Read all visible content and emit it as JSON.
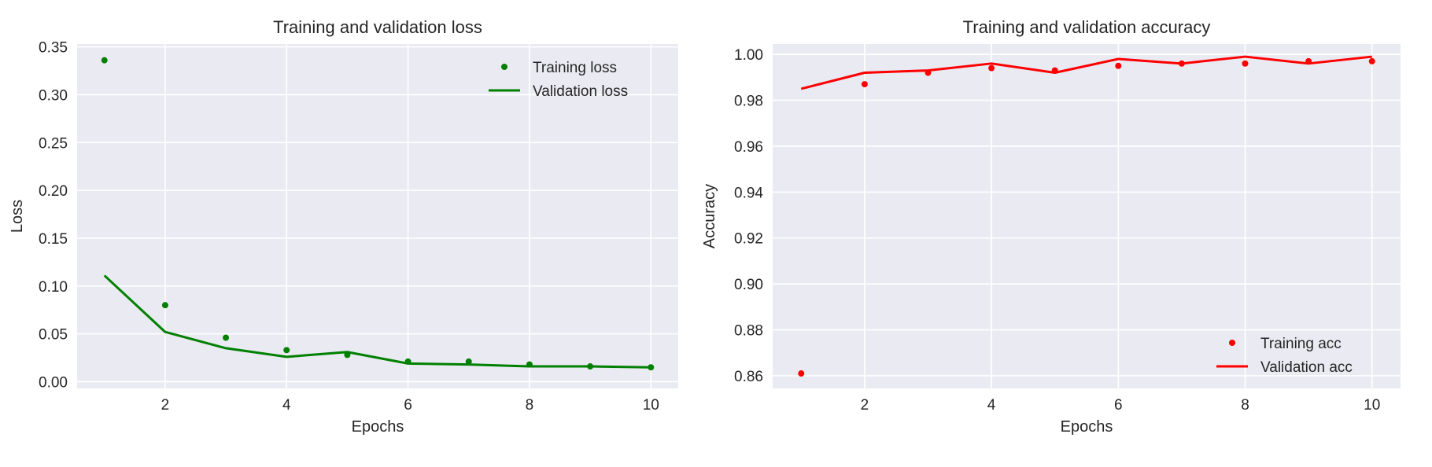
{
  "chart_data": [
    {
      "type": "line",
      "title": "Training and validation loss",
      "xlabel": "Epochs",
      "ylabel": "Loss",
      "x": [
        1,
        2,
        3,
        4,
        5,
        6,
        7,
        8,
        9,
        10
      ],
      "xlim": [
        0.55,
        10.45
      ],
      "ylim": [
        -0.007,
        0.353
      ],
      "xticks": [
        2,
        4,
        6,
        8,
        10
      ],
      "yticks": [
        0.0,
        0.05,
        0.1,
        0.15,
        0.2,
        0.25,
        0.3,
        0.35
      ],
      "ytick_labels": [
        "0.00",
        "0.05",
        "0.10",
        "0.15",
        "0.20",
        "0.25",
        "0.30",
        "0.35"
      ],
      "grid": true,
      "legend_position": "top-right",
      "series": [
        {
          "name": "Training loss",
          "style": "points",
          "color": "#008000",
          "values": [
            0.336,
            0.08,
            0.046,
            0.033,
            0.028,
            0.021,
            0.021,
            0.018,
            0.016,
            0.015
          ]
        },
        {
          "name": "Validation loss",
          "style": "line",
          "color": "#008000",
          "values": [
            0.111,
            0.052,
            0.035,
            0.026,
            0.031,
            0.019,
            0.018,
            0.016,
            0.016,
            0.015
          ]
        }
      ]
    },
    {
      "type": "line",
      "title": "Training and validation accuracy",
      "xlabel": "Epochs",
      "ylabel": "Accuracy",
      "x": [
        1,
        2,
        3,
        4,
        5,
        6,
        7,
        8,
        9,
        10
      ],
      "xlim": [
        0.55,
        10.45
      ],
      "ylim": [
        0.8545,
        1.0045
      ],
      "xticks": [
        2,
        4,
        6,
        8,
        10
      ],
      "yticks": [
        0.86,
        0.88,
        0.9,
        0.92,
        0.94,
        0.96,
        0.98,
        1.0
      ],
      "ytick_labels": [
        "0.86",
        "0.88",
        "0.90",
        "0.92",
        "0.94",
        "0.96",
        "0.98",
        "1.00"
      ],
      "grid": true,
      "legend_position": "bottom-right",
      "series": [
        {
          "name": "Training acc",
          "style": "points",
          "color": "#ff0000",
          "values": [
            0.861,
            0.987,
            0.992,
            0.994,
            0.993,
            0.995,
            0.996,
            0.996,
            0.997,
            0.997
          ]
        },
        {
          "name": "Validation acc",
          "style": "line",
          "color": "#ff0000",
          "values": [
            0.985,
            0.992,
            0.993,
            0.996,
            0.992,
            0.998,
            0.996,
            0.999,
            0.996,
            0.999
          ]
        }
      ]
    }
  ]
}
